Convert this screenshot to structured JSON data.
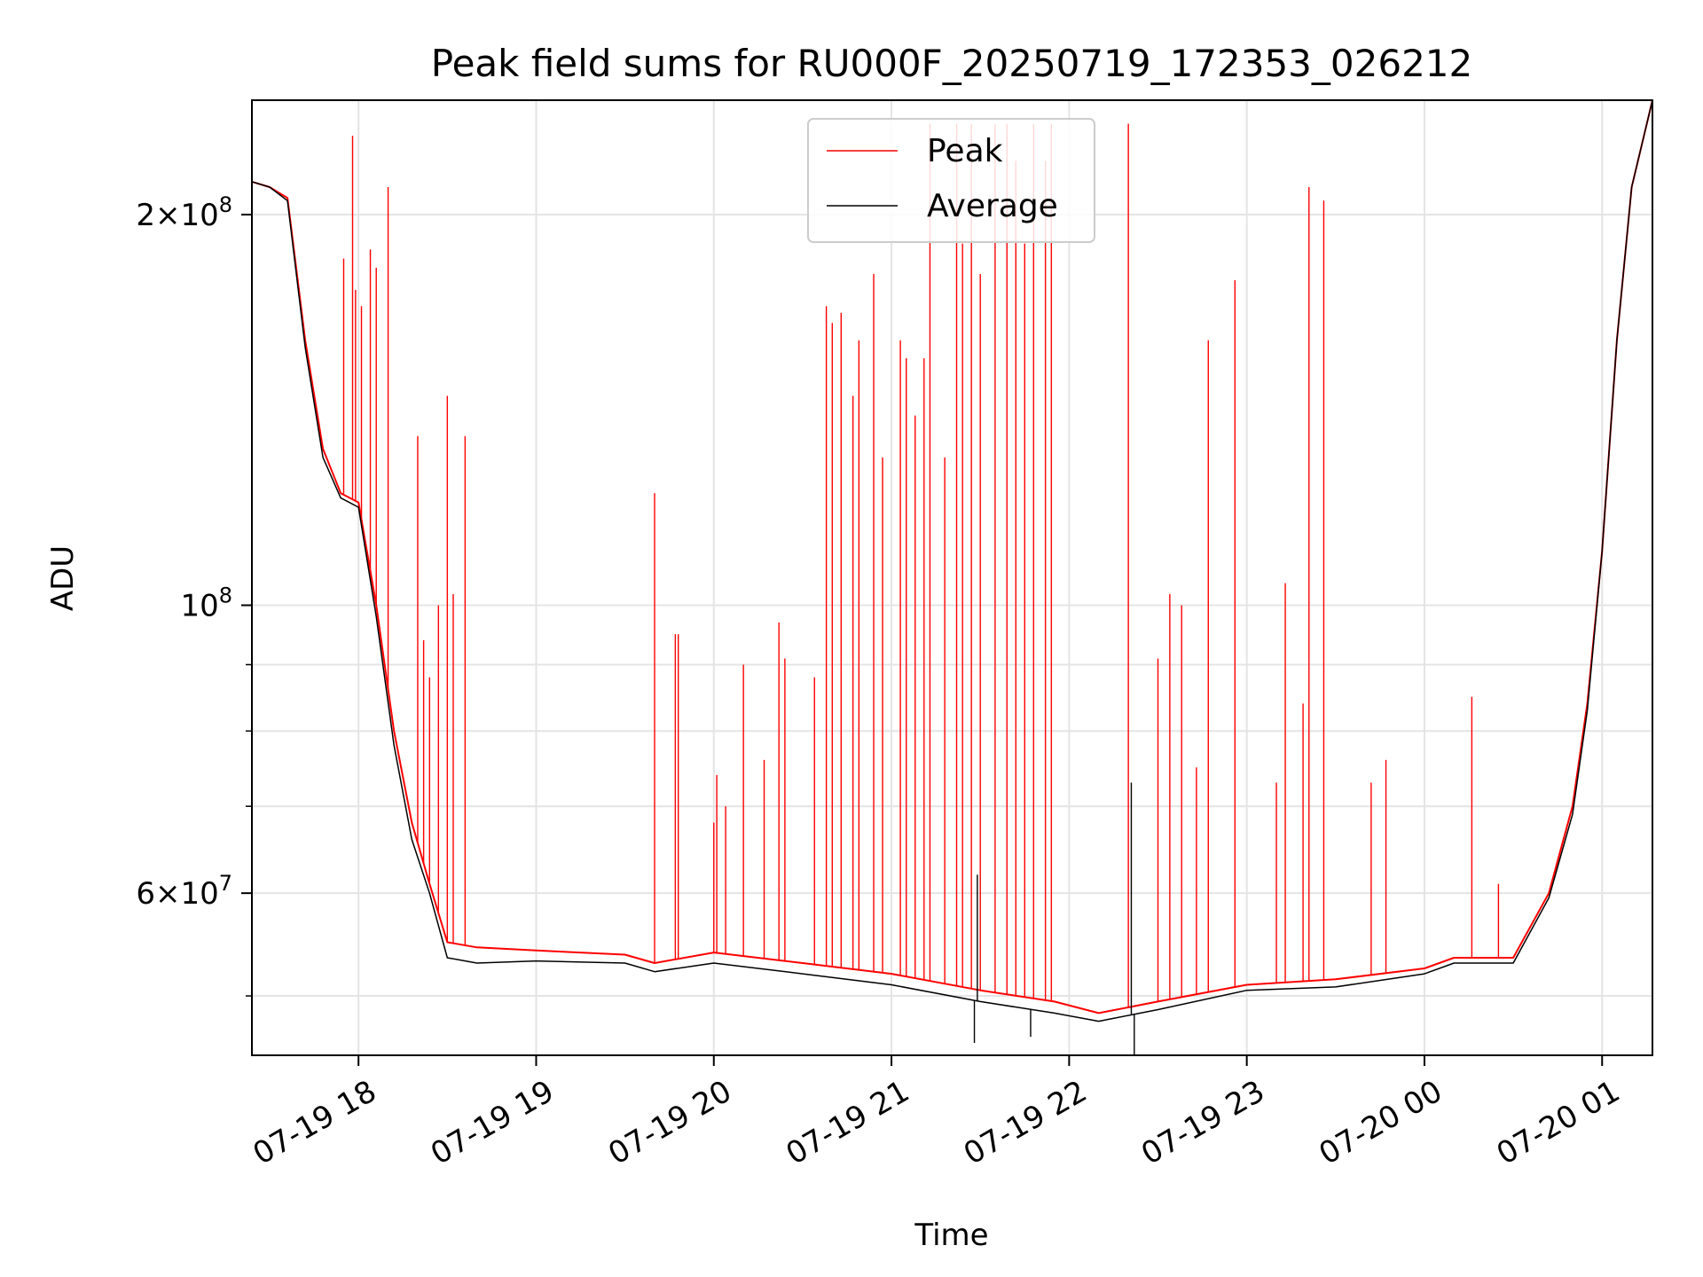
{
  "chart_data": {
    "type": "line",
    "title": "Peak field sums for RU000F_20250719_172353_026212",
    "xlabel": "Time",
    "ylabel": "ADU",
    "y_scale": "log",
    "x_range": [
      "2025-07-19 17:24",
      "2025-07-20 01:17"
    ],
    "ylim": [
      45000000,
      245000000
    ],
    "grid": true,
    "legend_position": "top-center",
    "x_ticks": [
      {
        "time": "2025-07-19 18:00",
        "label": "07-19 18"
      },
      {
        "time": "2025-07-19 19:00",
        "label": "07-19 19"
      },
      {
        "time": "2025-07-19 20:00",
        "label": "07-19 20"
      },
      {
        "time": "2025-07-19 21:00",
        "label": "07-19 21"
      },
      {
        "time": "2025-07-19 22:00",
        "label": "07-19 22"
      },
      {
        "time": "2025-07-19 23:00",
        "label": "07-19 23"
      },
      {
        "time": "2025-07-20 00:00",
        "label": "07-20 00"
      },
      {
        "time": "2025-07-20 01:00",
        "label": "07-20 01"
      }
    ],
    "y_ticks_major": [
      {
        "value": 60000000,
        "mantissa": "6",
        "times": "×",
        "base": "10",
        "exp": "7"
      },
      {
        "value": 100000000,
        "mantissa": "",
        "times": "",
        "base": "10",
        "exp": "8"
      },
      {
        "value": 200000000,
        "mantissa": "2",
        "times": "×",
        "base": "10",
        "exp": "8"
      }
    ],
    "y_ticks_minor": [
      50000000,
      70000000,
      80000000,
      90000000
    ],
    "series": [
      {
        "name": "Peak",
        "color": "#ff0000",
        "baseline_points": [
          [
            "2025-07-19 17:24",
            212000000.0
          ],
          [
            "2025-07-19 17:30",
            210000000.0
          ],
          [
            "2025-07-19 17:36",
            206000000.0
          ],
          [
            "2025-07-19 17:42",
            160000000.0
          ],
          [
            "2025-07-19 17:48",
            132000000.0
          ],
          [
            "2025-07-19 17:54",
            122000000.0
          ],
          [
            "2025-07-19 18:00",
            120000000.0
          ],
          [
            "2025-07-19 18:06",
            100000000.0
          ],
          [
            "2025-07-19 18:12",
            80000000.0
          ],
          [
            "2025-07-19 18:18",
            68000000.0
          ],
          [
            "2025-07-19 18:24",
            61000000.0
          ],
          [
            "2025-07-19 18:30",
            55000000.0
          ],
          [
            "2025-07-19 18:40",
            54500000.0
          ],
          [
            "2025-07-19 19:00",
            54200000.0
          ],
          [
            "2025-07-19 19:30",
            53800000.0
          ],
          [
            "2025-07-19 19:40",
            53000000.0
          ],
          [
            "2025-07-19 20:00",
            54000000.0
          ],
          [
            "2025-07-19 20:30",
            53000000.0
          ],
          [
            "2025-07-19 21:00",
            52000000.0
          ],
          [
            "2025-07-19 21:30",
            50500000.0
          ],
          [
            "2025-07-19 21:55",
            49500000.0
          ],
          [
            "2025-07-19 22:10",
            48500000.0
          ],
          [
            "2025-07-19 22:30",
            49500000.0
          ],
          [
            "2025-07-19 23:00",
            51000000.0
          ],
          [
            "2025-07-19 23:30",
            51500000.0
          ],
          [
            "2025-07-20 00:00",
            52500000.0
          ],
          [
            "2025-07-20 00:10",
            53500000.0
          ],
          [
            "2025-07-20 00:30",
            53500000.0
          ],
          [
            "2025-07-20 00:42",
            60000000.0
          ],
          [
            "2025-07-20 00:50",
            70000000.0
          ],
          [
            "2025-07-20 00:55",
            84000000.0
          ],
          [
            "2025-07-20 01:00",
            110000000.0
          ],
          [
            "2025-07-20 01:05",
            160000000.0
          ],
          [
            "2025-07-20 01:10",
            210000000.0
          ],
          [
            "2025-07-20 01:17",
            245000000.0
          ]
        ],
        "spikes": [
          [
            "2025-07-19 17:55",
            185000000.0
          ],
          [
            "2025-07-19 17:58",
            230000000.0
          ],
          [
            "2025-07-19 17:59",
            175000000.0
          ],
          [
            "2025-07-19 18:01",
            170000000.0
          ],
          [
            "2025-07-19 18:04",
            188000000.0
          ],
          [
            "2025-07-19 18:06",
            182000000.0
          ],
          [
            "2025-07-19 18:10",
            210000000.0
          ],
          [
            "2025-07-19 18:20",
            135000000.0
          ],
          [
            "2025-07-19 18:22",
            94000000.0
          ],
          [
            "2025-07-19 18:24",
            88000000.0
          ],
          [
            "2025-07-19 18:27",
            100000000.0
          ],
          [
            "2025-07-19 18:30",
            145000000.0
          ],
          [
            "2025-07-19 18:32",
            102000000.0
          ],
          [
            "2025-07-19 18:36",
            135000000.0
          ],
          [
            "2025-07-19 19:40",
            122000000.0
          ],
          [
            "2025-07-19 19:47",
            95000000.0
          ],
          [
            "2025-07-19 19:48",
            95000000.0
          ],
          [
            "2025-07-19 20:00",
            68000000.0
          ],
          [
            "2025-07-19 20:01",
            74000000.0
          ],
          [
            "2025-07-19 20:04",
            70000000.0
          ],
          [
            "2025-07-19 20:10",
            90000000.0
          ],
          [
            "2025-07-19 20:17",
            76000000.0
          ],
          [
            "2025-07-19 20:22",
            97000000.0
          ],
          [
            "2025-07-19 20:24",
            91000000.0
          ],
          [
            "2025-07-19 20:34",
            88000000.0
          ],
          [
            "2025-07-19 20:38",
            170000000.0
          ],
          [
            "2025-07-19 20:40",
            165000000.0
          ],
          [
            "2025-07-19 20:43",
            168000000.0
          ],
          [
            "2025-07-19 20:47",
            145000000.0
          ],
          [
            "2025-07-19 20:49",
            160000000.0
          ],
          [
            "2025-07-19 20:54",
            180000000.0
          ],
          [
            "2025-07-19 20:57",
            130000000.0
          ],
          [
            "2025-07-19 21:03",
            160000000.0
          ],
          [
            "2025-07-19 21:05",
            155000000.0
          ],
          [
            "2025-07-19 21:08",
            140000000.0
          ],
          [
            "2025-07-19 21:11",
            155000000.0
          ],
          [
            "2025-07-19 21:13",
            235000000.0
          ],
          [
            "2025-07-19 21:18",
            130000000.0
          ],
          [
            "2025-07-19 21:22",
            235000000.0
          ],
          [
            "2025-07-19 21:24",
            190000000.0
          ],
          [
            "2025-07-19 21:27",
            235000000.0
          ],
          [
            "2025-07-19 21:30",
            180000000.0
          ],
          [
            "2025-07-19 21:35",
            235000000.0
          ],
          [
            "2025-07-19 21:39",
            235000000.0
          ],
          [
            "2025-07-19 21:42",
            220000000.0
          ],
          [
            "2025-07-19 21:45",
            190000000.0
          ],
          [
            "2025-07-19 21:48",
            235000000.0
          ],
          [
            "2025-07-19 21:52",
            220000000.0
          ],
          [
            "2025-07-19 21:54",
            235000000.0
          ],
          [
            "2025-07-19 22:20",
            235000000.0
          ],
          [
            "2025-07-19 22:30",
            91000000.0
          ],
          [
            "2025-07-19 22:34",
            102000000.0
          ],
          [
            "2025-07-19 22:38",
            100000000.0
          ],
          [
            "2025-07-19 22:43",
            75000000.0
          ],
          [
            "2025-07-19 22:47",
            160000000.0
          ],
          [
            "2025-07-19 22:56",
            178000000.0
          ],
          [
            "2025-07-19 23:10",
            73000000.0
          ],
          [
            "2025-07-19 23:13",
            104000000.0
          ],
          [
            "2025-07-19 23:19",
            84000000.0
          ],
          [
            "2025-07-19 23:21",
            210000000.0
          ],
          [
            "2025-07-19 23:26",
            205000000.0
          ],
          [
            "2025-07-19 23:42",
            73000000.0
          ],
          [
            "2025-07-19 23:47",
            76000000.0
          ],
          [
            "2025-07-20 00:16",
            85000000.0
          ],
          [
            "2025-07-20 00:25",
            61000000.0
          ]
        ]
      },
      {
        "name": "Average",
        "color": "#000000",
        "baseline_points": [
          [
            "2025-07-19 17:24",
            212000000.0
          ],
          [
            "2025-07-19 17:30",
            210000000.0
          ],
          [
            "2025-07-19 17:36",
            205000000.0
          ],
          [
            "2025-07-19 17:42",
            158000000.0
          ],
          [
            "2025-07-19 17:48",
            130000000.0
          ],
          [
            "2025-07-19 17:54",
            121000000.0
          ],
          [
            "2025-07-19 18:00",
            119000000.0
          ],
          [
            "2025-07-19 18:06",
            98000000.0
          ],
          [
            "2025-07-19 18:12",
            78000000.0
          ],
          [
            "2025-07-19 18:18",
            66000000.0
          ],
          [
            "2025-07-19 18:24",
            60000000.0
          ],
          [
            "2025-07-19 18:30",
            53500000.0
          ],
          [
            "2025-07-19 18:40",
            53000000.0
          ],
          [
            "2025-07-19 19:00",
            53200000.0
          ],
          [
            "2025-07-19 19:30",
            53000000.0
          ],
          [
            "2025-07-19 19:40",
            52200000.0
          ],
          [
            "2025-07-19 20:00",
            53000000.0
          ],
          [
            "2025-07-19 20:30",
            52000000.0
          ],
          [
            "2025-07-19 21:00",
            51000000.0
          ],
          [
            "2025-07-19 21:30",
            49500000.0
          ],
          [
            "2025-07-19 21:55",
            48500000.0
          ],
          [
            "2025-07-19 22:10",
            47800000.0
          ],
          [
            "2025-07-19 22:30",
            48800000.0
          ],
          [
            "2025-07-19 23:00",
            50500000.0
          ],
          [
            "2025-07-19 23:30",
            50800000.0
          ],
          [
            "2025-07-20 00:00",
            52000000.0
          ],
          [
            "2025-07-20 00:10",
            53000000.0
          ],
          [
            "2025-07-20 00:30",
            53000000.0
          ],
          [
            "2025-07-20 00:42",
            59500000.0
          ],
          [
            "2025-07-20 00:50",
            69000000.0
          ],
          [
            "2025-07-20 00:55",
            83000000.0
          ],
          [
            "2025-07-20 01:00",
            110000000.0
          ],
          [
            "2025-07-20 01:05",
            160000000.0
          ],
          [
            "2025-07-20 01:10",
            210000000.0
          ],
          [
            "2025-07-20 01:17",
            245000000.0
          ]
        ],
        "spikes": [
          [
            "2025-07-19 21:28",
            46000000.0
          ],
          [
            "2025-07-19 21:29",
            62000000.0
          ],
          [
            "2025-07-19 21:47",
            46500000.0
          ],
          [
            "2025-07-19 22:21",
            73000000.0
          ],
          [
            "2025-07-19 22:22",
            45000000.0
          ]
        ]
      }
    ]
  }
}
